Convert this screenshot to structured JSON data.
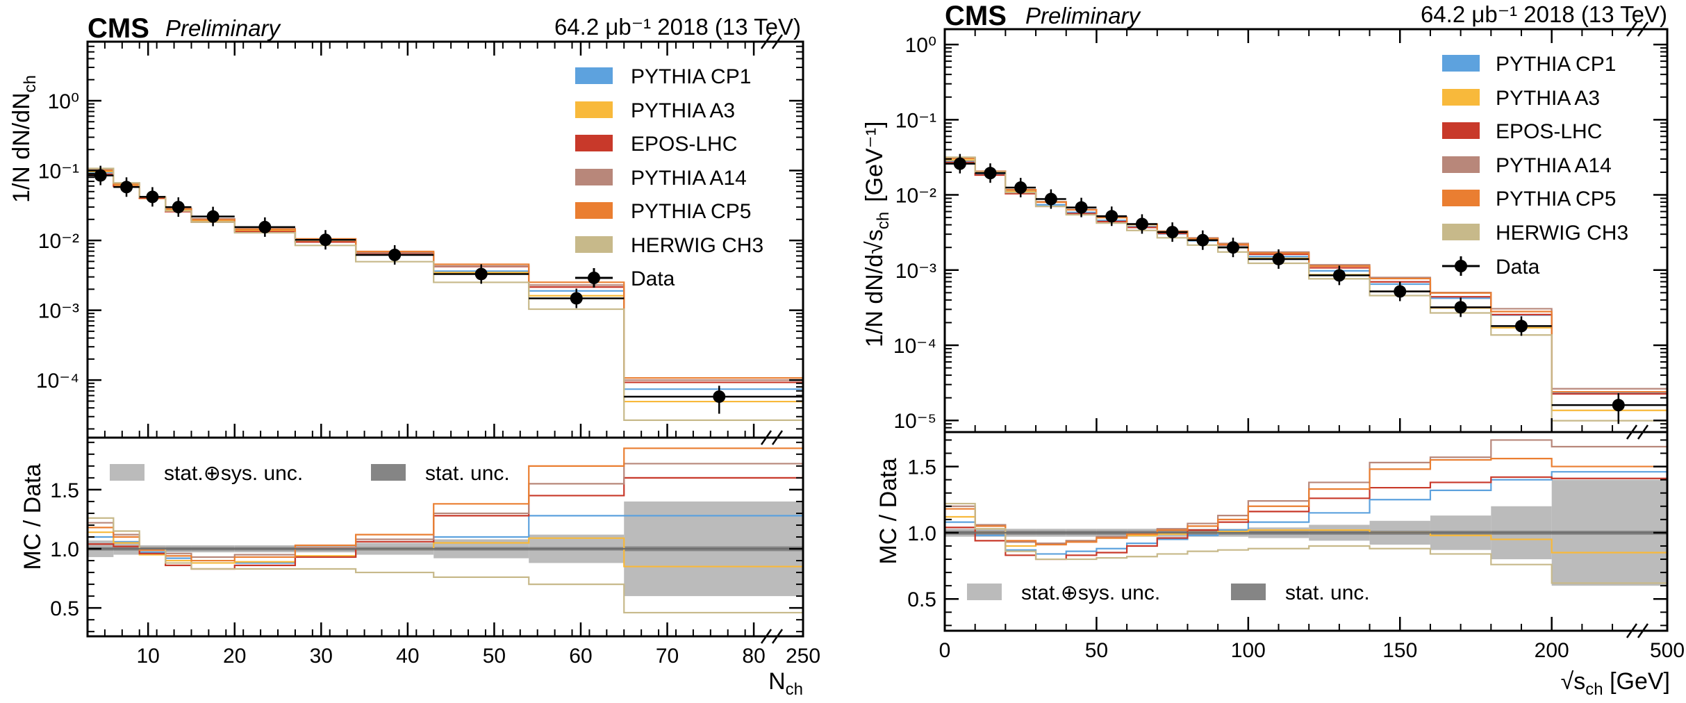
{
  "figure": {
    "colors": {
      "pythia_cp1": "#5DA2DE",
      "pythia_a3": "#F8B93B",
      "epos_lhc": "#C8392A",
      "pythia_a14": "#B8877A",
      "pythia_cp5": "#EA7E31",
      "herwig_ch3": "#C7B98A",
      "data": "#000000",
      "stat_sys_band": "#BBBBBB",
      "stat_band": "#858585"
    }
  },
  "chart_data": [
    {
      "type": "line",
      "name": "nch-distribution",
      "experiment_label": "CMS",
      "status_label": "Preliminary",
      "lumi_label": "64.2 μb⁻¹ 2018 (13 TeV)",
      "xlabel": "N",
      "xlabel_sub": "ch",
      "ylabel": "1/N dN/dN",
      "ylabel_sub": "ch",
      "ratio_ylabel": "MC / Data",
      "y_scale": "log",
      "ylim": [
        1.5e-05,
        7
      ],
      "ratio_ylim": [
        0.26,
        1.94
      ],
      "xlim": [
        3,
        250
      ],
      "x_axis_break": "between 82 and 250",
      "edges": [
        3,
        6,
        9,
        12,
        15,
        20,
        27,
        34,
        43,
        54,
        65,
        250
      ],
      "x_ticks": [
        "10",
        "20",
        "30",
        "40",
        "50",
        "60",
        "70",
        "80",
        "250"
      ],
      "y_ticks": [
        "10⁻⁴",
        "10⁻³",
        "10⁻²",
        "10⁻¹",
        "10⁰"
      ],
      "ratio_ticks": [
        "0.5",
        "1.0",
        "1.5"
      ],
      "legend": [
        "PYTHIA CP1",
        "PYTHIA A3",
        "EPOS-LHC",
        "PYTHIA A14",
        "PYTHIA CP5",
        "HERWIG CH3",
        "Data"
      ],
      "unc_legend": [
        "stat.⊕sys. unc.",
        "stat. unc."
      ],
      "data_x": [
        4.5,
        7.5,
        10.5,
        13.5,
        17.5,
        23.5,
        30.5,
        38.5,
        48.5,
        59.5,
        76
      ],
      "data_y": [
        0.085,
        0.058,
        0.042,
        0.03,
        0.022,
        0.0155,
        0.0102,
        0.0062,
        0.0033,
        0.00148,
        5.8e-05
      ],
      "data_yerr": [
        0.004,
        0.003,
        0.002,
        0.0015,
        0.001,
        0.0007,
        0.0005,
        0.0003,
        0.0002,
        0.0001,
        2.5e-05
      ],
      "unc_stat_sys": [
        0.07,
        0.05,
        0.03,
        0.03,
        0.03,
        0.03,
        0.03,
        0.05,
        0.08,
        0.12,
        0.4
      ],
      "unc_stat": [
        0.03,
        0.03,
        0.03,
        0.03,
        0.03,
        0.03,
        0.03,
        0.03,
        0.03,
        0.03,
        0.04
      ],
      "series": [
        {
          "name": "PYTHIA CP1",
          "ratio": [
            1.1,
            1.06,
            0.97,
            0.92,
            0.88,
            0.88,
            0.93,
            1.0,
            1.1,
            1.28,
            1.28
          ]
        },
        {
          "name": "PYTHIA A3",
          "ratio": [
            1.14,
            1.05,
            0.95,
            0.9,
            0.88,
            0.89,
            0.94,
            1.0,
            1.05,
            1.09,
            0.85
          ]
        },
        {
          "name": "EPOS-LHC",
          "ratio": [
            1.04,
            1.02,
            0.96,
            0.86,
            0.83,
            0.86,
            0.93,
            1.06,
            1.28,
            1.45,
            1.6
          ]
        },
        {
          "name": "PYTHIA A14",
          "ratio": [
            1.22,
            1.12,
            1.0,
            0.96,
            0.93,
            0.95,
            1.01,
            1.08,
            1.3,
            1.55,
            1.72
          ]
        },
        {
          "name": "PYTHIA CP5",
          "ratio": [
            1.18,
            1.1,
            0.99,
            0.94,
            0.9,
            0.93,
            1.03,
            1.12,
            1.38,
            1.7,
            1.85
          ]
        },
        {
          "name": "HERWIG CH3",
          "ratio": [
            1.26,
            1.15,
            1.0,
            0.88,
            0.83,
            0.83,
            0.83,
            0.8,
            0.76,
            0.7,
            0.46
          ]
        }
      ]
    },
    {
      "type": "line",
      "name": "sqrt-sch-distribution",
      "experiment_label": "CMS",
      "status_label": "Preliminary",
      "lumi_label": "64.2 μb⁻¹ 2018 (13 TeV)",
      "xlabel": "√",
      "xlabel_main": "s",
      "xlabel_sub": "ch",
      "xlabel_unit": " [GeV]",
      "ylabel": "1/N dN/d√",
      "ylabel_main": "s",
      "ylabel_sub": "ch",
      "ylabel_unit": "[GeV⁻¹]",
      "ratio_ylabel": "MC / Data",
      "y_scale": "log",
      "ylim": [
        7e-06,
        1.6
      ],
      "ratio_ylim": [
        0.26,
        1.76
      ],
      "xlim": [
        0,
        500
      ],
      "x_axis_break": "between 228 and 500",
      "edges": [
        0,
        10,
        20,
        30,
        40,
        50,
        60,
        70,
        80,
        90,
        100,
        120,
        140,
        160,
        180,
        200,
        500
      ],
      "x_ticks": [
        "0",
        "50",
        "100",
        "150",
        "200",
        "500"
      ],
      "y_ticks": [
        "10⁻⁵",
        "10⁻⁴",
        "10⁻³",
        "10⁻²",
        "10⁻¹",
        "10⁰"
      ],
      "ratio_ticks": [
        "0.5",
        "1.0",
        "1.5"
      ],
      "legend": [
        "PYTHIA CP1",
        "PYTHIA A3",
        "EPOS-LHC",
        "PYTHIA A14",
        "PYTHIA CP5",
        "HERWIG CH3",
        "Data"
      ],
      "unc_legend": [
        "stat.⊕sys. unc.",
        "stat. unc."
      ],
      "data_x": [
        5,
        15,
        25,
        35,
        45,
        55,
        65,
        75,
        85,
        95,
        110,
        130,
        150,
        170,
        190,
        222
      ],
      "data_y": [
        0.026,
        0.0195,
        0.0125,
        0.0088,
        0.0068,
        0.0052,
        0.0041,
        0.0032,
        0.0025,
        0.002,
        0.0014,
        0.00085,
        0.00052,
        0.00032,
        0.00018,
        1.6e-05
      ],
      "data_yerr": [
        0.0015,
        0.001,
        0.0007,
        0.0005,
        0.0004,
        0.0003,
        0.0002,
        0.00016,
        0.00013,
        0.0001,
        7e-05,
        5e-05,
        3e-05,
        2e-05,
        1e-05,
        7e-06
      ],
      "unc_stat_sys": [
        0.03,
        0.03,
        0.03,
        0.03,
        0.03,
        0.03,
        0.03,
        0.03,
        0.03,
        0.03,
        0.04,
        0.06,
        0.09,
        0.13,
        0.2,
        0.4
      ],
      "unc_stat": [
        0.03,
        0.03,
        0.03,
        0.03,
        0.03,
        0.03,
        0.03,
        0.03,
        0.03,
        0.03,
        0.03,
        0.03,
        0.03,
        0.03,
        0.03,
        0.03
      ],
      "series": [
        {
          "name": "PYTHIA CP1",
          "ratio": [
            1.08,
            0.98,
            0.87,
            0.84,
            0.86,
            0.88,
            0.92,
            0.95,
            0.98,
            1.02,
            1.08,
            1.15,
            1.25,
            1.32,
            1.4,
            1.46
          ]
        },
        {
          "name": "PYTHIA A3",
          "ratio": [
            1.12,
            1.0,
            0.9,
            0.92,
            0.94,
            0.96,
            0.98,
            0.99,
            1.0,
            1.01,
            1.02,
            1.02,
            1.0,
            0.98,
            0.95,
            0.85
          ]
        },
        {
          "name": "EPOS-LHC",
          "ratio": [
            1.04,
            0.94,
            0.83,
            0.8,
            0.83,
            0.85,
            0.9,
            0.96,
            1.02,
            1.08,
            1.16,
            1.26,
            1.34,
            1.38,
            1.42,
            1.41
          ]
        },
        {
          "name": "PYTHIA A14",
          "ratio": [
            1.2,
            1.06,
            0.93,
            0.92,
            0.94,
            0.97,
            1.0,
            1.03,
            1.07,
            1.13,
            1.24,
            1.38,
            1.53,
            1.57,
            1.7,
            1.65
          ]
        },
        {
          "name": "PYTHIA CP5",
          "ratio": [
            1.18,
            1.05,
            0.94,
            0.91,
            0.93,
            0.96,
            0.99,
            1.02,
            1.05,
            1.1,
            1.2,
            1.33,
            1.48,
            1.55,
            1.56,
            1.5
          ]
        },
        {
          "name": "HERWIG CH3",
          "ratio": [
            1.22,
            1.03,
            0.86,
            0.8,
            0.8,
            0.81,
            0.82,
            0.84,
            0.86,
            0.87,
            0.88,
            0.9,
            0.88,
            0.84,
            0.76,
            0.62
          ]
        }
      ]
    }
  ]
}
